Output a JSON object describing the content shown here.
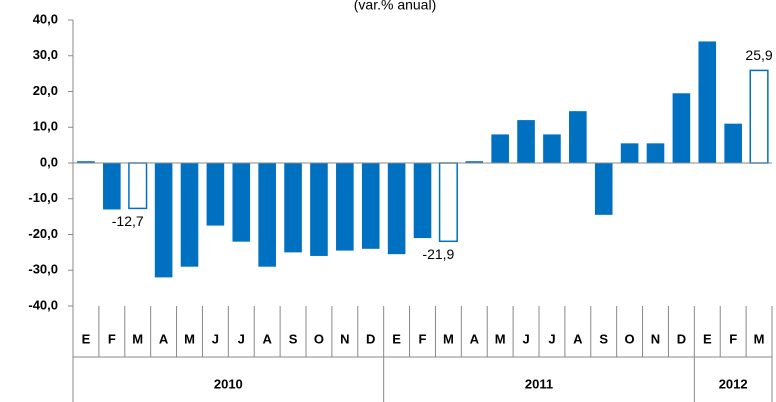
{
  "chart_data": {
    "type": "bar",
    "subtitle": "(var.% anual)",
    "categories": [
      "E",
      "F",
      "M",
      "A",
      "M",
      "J",
      "J",
      "A",
      "S",
      "O",
      "N",
      "D",
      "E",
      "F",
      "M",
      "A",
      "M",
      "J",
      "J",
      "A",
      "S",
      "O",
      "N",
      "D",
      "E",
      "F",
      "M"
    ],
    "values": [
      0.5,
      -13,
      -12.7,
      -32,
      -29,
      -17.5,
      -22,
      -29,
      -25,
      -26,
      -24.5,
      -24,
      -25.5,
      -21,
      -21.9,
      0.5,
      8,
      12,
      8,
      14.5,
      -14.5,
      5.5,
      5.5,
      19.5,
      34,
      11,
      25.9
    ],
    "value_labels": [
      null,
      null,
      "-12,7",
      null,
      null,
      null,
      null,
      null,
      null,
      null,
      null,
      null,
      null,
      null,
      "-21,9",
      null,
      null,
      null,
      null,
      null,
      null,
      null,
      null,
      null,
      null,
      null,
      "25,9"
    ],
    "outlined_bars": [
      2,
      14,
      26
    ],
    "year_groups": [
      {
        "label": "2010",
        "count": 12
      },
      {
        "label": "2011",
        "count": 12
      },
      {
        "label": "2012",
        "count": 3
      }
    ],
    "color": "#0070c0",
    "ylim": [
      -40,
      40
    ],
    "yticks": [
      {
        "value": 40,
        "label": "40,0"
      },
      {
        "value": 30,
        "label": "30,0"
      },
      {
        "value": 20,
        "label": "20,0"
      },
      {
        "value": 10,
        "label": "10,0"
      },
      {
        "value": 0,
        "label": "0,0"
      },
      {
        "value": -10,
        "label": "-10,0"
      },
      {
        "value": -20,
        "label": "-20,0"
      },
      {
        "value": -30,
        "label": "-30,0"
      },
      {
        "value": -40,
        "label": "-40,0"
      }
    ]
  }
}
